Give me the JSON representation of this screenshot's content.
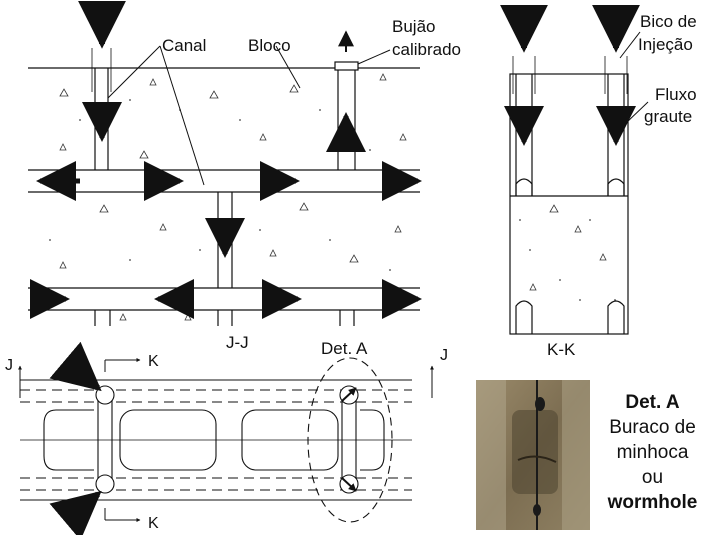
{
  "labels": {
    "canal": "Canal",
    "bloco": "Bloco",
    "bujao_line1": "Bujão",
    "bujao_line2": "calibrado",
    "bico_line1": "Bico de",
    "bico_line2": "Injeção",
    "fluxo_line1": "Fluxo",
    "fluxo_line2": "graute",
    "section_jj": "J-J",
    "section_kk": "K-K",
    "det_a": "Det. A",
    "cut_j_left": "J",
    "cut_j_right": "J",
    "cut_k_top": "K",
    "cut_k_bottom": "K"
  },
  "photo_caption": {
    "title": "Det. A",
    "line1": "Buraco de",
    "line2": "minhoca",
    "line3": "ou",
    "term": "wormhole"
  },
  "colors": {
    "line": "#111111",
    "photo_base": "#8a7a5c",
    "photo_dark": "#5d5038",
    "photo_hole": "#1a1a1a"
  }
}
